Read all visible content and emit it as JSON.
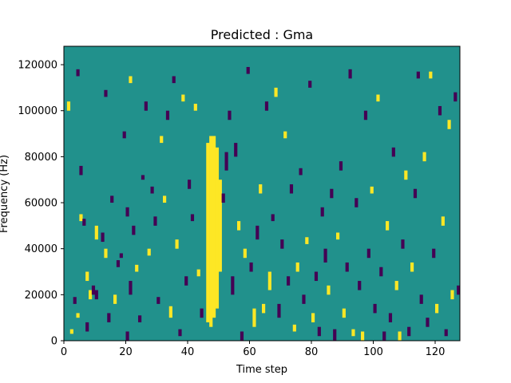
{
  "chart_data": {
    "type": "heatmap",
    "title": "Predicted : Gma",
    "xlabel": "Time step",
    "ylabel": "Frequency (Hz)",
    "xlim": [
      0,
      128
    ],
    "ylim": [
      0,
      128000
    ],
    "x_ticks": [
      0,
      20,
      40,
      60,
      80,
      100,
      120
    ],
    "y_ticks": [
      0,
      20000,
      40000,
      60000,
      80000,
      100000,
      120000
    ],
    "x_tick_labels": [
      "0",
      "20",
      "40",
      "60",
      "80",
      "100",
      "120"
    ],
    "y_tick_labels": [
      "0",
      "20000",
      "40000",
      "60000",
      "80000",
      "100000",
      "120000"
    ],
    "n_time_steps": 128,
    "n_frequency_bins": 128,
    "colormap": "viridis",
    "value_levels": [
      0,
      1,
      2
    ],
    "colors": {
      "low": "#440154",
      "mid": "#21918c",
      "high": "#fde725",
      "axes": "#000000",
      "background": "#ffffff"
    },
    "background_value": 1,
    "segments": [
      {
        "t": 1,
        "f0": 100,
        "f1": 104,
        "v": 2
      },
      {
        "t": 2,
        "f0": 3,
        "f1": 5,
        "v": 2
      },
      {
        "t": 3,
        "f0": 16,
        "f1": 19,
        "v": 0
      },
      {
        "t": 4,
        "f0": 10,
        "f1": 12,
        "v": 2
      },
      {
        "t": 4,
        "f0": 115,
        "f1": 118,
        "v": 0
      },
      {
        "t": 5,
        "f0": 52,
        "f1": 55,
        "v": 2
      },
      {
        "t": 5,
        "f0": 72,
        "f1": 76,
        "v": 0
      },
      {
        "t": 6,
        "f0": 50,
        "f1": 53,
        "v": 0
      },
      {
        "t": 7,
        "f0": 4,
        "f1": 8,
        "v": 0
      },
      {
        "t": 7,
        "f0": 26,
        "f1": 30,
        "v": 2
      },
      {
        "t": 8,
        "f0": 18,
        "f1": 22,
        "v": 2
      },
      {
        "t": 9,
        "f0": 20,
        "f1": 24,
        "v": 0
      },
      {
        "t": 10,
        "f0": 18,
        "f1": 22,
        "v": 0
      },
      {
        "t": 10,
        "f0": 44,
        "f1": 50,
        "v": 2
      },
      {
        "t": 12,
        "f0": 43,
        "f1": 47,
        "v": 0
      },
      {
        "t": 13,
        "f0": 36,
        "f1": 40,
        "v": 2
      },
      {
        "t": 13,
        "f0": 106,
        "f1": 109,
        "v": 0
      },
      {
        "t": 14,
        "f0": 8,
        "f1": 12,
        "v": 0
      },
      {
        "t": 15,
        "f0": 60,
        "f1": 63,
        "v": 0
      },
      {
        "t": 16,
        "f0": 16,
        "f1": 20,
        "v": 2
      },
      {
        "t": 17,
        "f0": 32,
        "f1": 35,
        "v": 0
      },
      {
        "t": 18,
        "f0": 36,
        "f1": 38,
        "v": 0
      },
      {
        "t": 19,
        "f0": 88,
        "f1": 91,
        "v": 0
      },
      {
        "t": 20,
        "f0": 0,
        "f1": 4,
        "v": 0
      },
      {
        "t": 20,
        "f0": 54,
        "f1": 58,
        "v": 0
      },
      {
        "t": 21,
        "f0": 20,
        "f1": 26,
        "v": 0
      },
      {
        "t": 21,
        "f0": 112,
        "f1": 115,
        "v": 2
      },
      {
        "t": 22,
        "f0": 46,
        "f1": 50,
        "v": 0
      },
      {
        "t": 23,
        "f0": 30,
        "f1": 33,
        "v": 2
      },
      {
        "t": 24,
        "f0": 8,
        "f1": 11,
        "v": 0
      },
      {
        "t": 25,
        "f0": 70,
        "f1": 72,
        "v": 0
      },
      {
        "t": 26,
        "f0": 100,
        "f1": 104,
        "v": 0
      },
      {
        "t": 27,
        "f0": 37,
        "f1": 40,
        "v": 2
      },
      {
        "t": 28,
        "f0": 64,
        "f1": 67,
        "v": 0
      },
      {
        "t": 29,
        "f0": 50,
        "f1": 54,
        "v": 0
      },
      {
        "t": 30,
        "f0": 16,
        "f1": 19,
        "v": 0
      },
      {
        "t": 31,
        "f0": 86,
        "f1": 89,
        "v": 2
      },
      {
        "t": 32,
        "f0": 60,
        "f1": 63,
        "v": 2
      },
      {
        "t": 33,
        "f0": 96,
        "f1": 100,
        "v": 0
      },
      {
        "t": 34,
        "f0": 10,
        "f1": 15,
        "v": 2
      },
      {
        "t": 35,
        "f0": 112,
        "f1": 115,
        "v": 0
      },
      {
        "t": 36,
        "f0": 40,
        "f1": 44,
        "v": 2
      },
      {
        "t": 37,
        "f0": 2,
        "f1": 5,
        "v": 0
      },
      {
        "t": 38,
        "f0": 104,
        "f1": 107,
        "v": 2
      },
      {
        "t": 39,
        "f0": 24,
        "f1": 28,
        "v": 0
      },
      {
        "t": 40,
        "f0": 66,
        "f1": 70,
        "v": 0
      },
      {
        "t": 41,
        "f0": 52,
        "f1": 55,
        "v": 0
      },
      {
        "t": 42,
        "f0": 100,
        "f1": 103,
        "v": 2
      },
      {
        "t": 43,
        "f0": 28,
        "f1": 31,
        "v": 2
      },
      {
        "t": 44,
        "f0": 10,
        "f1": 14,
        "v": 0
      },
      {
        "t": 46,
        "f0": 8,
        "f1": 86,
        "v": 2
      },
      {
        "t": 47,
        "f0": 6,
        "f1": 89,
        "v": 2
      },
      {
        "t": 48,
        "f0": 10,
        "f1": 89,
        "v": 2
      },
      {
        "t": 49,
        "f0": 14,
        "f1": 84,
        "v": 2
      },
      {
        "t": 50,
        "f0": 30,
        "f1": 70,
        "v": 2
      },
      {
        "t": 51,
        "f0": 60,
        "f1": 64,
        "v": 0
      },
      {
        "t": 52,
        "f0": 74,
        "f1": 82,
        "v": 0
      },
      {
        "t": 53,
        "f0": 96,
        "f1": 100,
        "v": 0
      },
      {
        "t": 54,
        "f0": 20,
        "f1": 28,
        "v": 0
      },
      {
        "t": 55,
        "f0": 80,
        "f1": 86,
        "v": 0
      },
      {
        "t": 56,
        "f0": 48,
        "f1": 52,
        "v": 2
      },
      {
        "t": 57,
        "f0": 0,
        "f1": 4,
        "v": 0
      },
      {
        "t": 58,
        "f0": 36,
        "f1": 40,
        "v": 2
      },
      {
        "t": 59,
        "f0": 116,
        "f1": 119,
        "v": 0
      },
      {
        "t": 60,
        "f0": 30,
        "f1": 34,
        "v": 0
      },
      {
        "t": 61,
        "f0": 6,
        "f1": 14,
        "v": 2
      },
      {
        "t": 62,
        "f0": 44,
        "f1": 50,
        "v": 0
      },
      {
        "t": 63,
        "f0": 64,
        "f1": 68,
        "v": 2
      },
      {
        "t": 64,
        "f0": 12,
        "f1": 16,
        "v": 2
      },
      {
        "t": 65,
        "f0": 100,
        "f1": 104,
        "v": 0
      },
      {
        "t": 66,
        "f0": 22,
        "f1": 30,
        "v": 2
      },
      {
        "t": 67,
        "f0": 52,
        "f1": 55,
        "v": 0
      },
      {
        "t": 68,
        "f0": 106,
        "f1": 110,
        "v": 2
      },
      {
        "t": 69,
        "f0": 10,
        "f1": 16,
        "v": 0
      },
      {
        "t": 70,
        "f0": 40,
        "f1": 44,
        "v": 0
      },
      {
        "t": 71,
        "f0": 88,
        "f1": 91,
        "v": 2
      },
      {
        "t": 72,
        "f0": 24,
        "f1": 28,
        "v": 0
      },
      {
        "t": 73,
        "f0": 64,
        "f1": 68,
        "v": 0
      },
      {
        "t": 74,
        "f0": 4,
        "f1": 7,
        "v": 2
      },
      {
        "t": 75,
        "f0": 30,
        "f1": 34,
        "v": 2
      },
      {
        "t": 76,
        "f0": 72,
        "f1": 75,
        "v": 0
      },
      {
        "t": 77,
        "f0": 16,
        "f1": 20,
        "v": 0
      },
      {
        "t": 78,
        "f0": 42,
        "f1": 45,
        "v": 2
      },
      {
        "t": 79,
        "f0": 110,
        "f1": 113,
        "v": 0
      },
      {
        "t": 80,
        "f0": 8,
        "f1": 12,
        "v": 2
      },
      {
        "t": 81,
        "f0": 26,
        "f1": 30,
        "v": 0
      },
      {
        "t": 82,
        "f0": 2,
        "f1": 6,
        "v": 0
      },
      {
        "t": 83,
        "f0": 54,
        "f1": 58,
        "v": 0
      },
      {
        "t": 84,
        "f0": 34,
        "f1": 40,
        "v": 0
      },
      {
        "t": 85,
        "f0": 20,
        "f1": 24,
        "v": 2
      },
      {
        "t": 86,
        "f0": 62,
        "f1": 66,
        "v": 0
      },
      {
        "t": 87,
        "f0": 0,
        "f1": 5,
        "v": 0
      },
      {
        "t": 88,
        "f0": 44,
        "f1": 47,
        "v": 2
      },
      {
        "t": 89,
        "f0": 74,
        "f1": 78,
        "v": 0
      },
      {
        "t": 90,
        "f0": 10,
        "f1": 14,
        "v": 2
      },
      {
        "t": 91,
        "f0": 30,
        "f1": 34,
        "v": 0
      },
      {
        "t": 92,
        "f0": 114,
        "f1": 118,
        "v": 0
      },
      {
        "t": 93,
        "f0": 2,
        "f1": 5,
        "v": 2
      },
      {
        "t": 94,
        "f0": 58,
        "f1": 62,
        "v": 0
      },
      {
        "t": 95,
        "f0": 22,
        "f1": 26,
        "v": 0
      },
      {
        "t": 96,
        "f0": 0,
        "f1": 4,
        "v": 2
      },
      {
        "t": 97,
        "f0": 96,
        "f1": 100,
        "v": 0
      },
      {
        "t": 98,
        "f0": 36,
        "f1": 40,
        "v": 0
      },
      {
        "t": 99,
        "f0": 64,
        "f1": 67,
        "v": 2
      },
      {
        "t": 100,
        "f0": 12,
        "f1": 16,
        "v": 0
      },
      {
        "t": 101,
        "f0": 104,
        "f1": 107,
        "v": 2
      },
      {
        "t": 102,
        "f0": 28,
        "f1": 32,
        "v": 0
      },
      {
        "t": 103,
        "f0": 0,
        "f1": 4,
        "v": 0
      },
      {
        "t": 104,
        "f0": 48,
        "f1": 52,
        "v": 2
      },
      {
        "t": 105,
        "f0": 8,
        "f1": 12,
        "v": 0
      },
      {
        "t": 106,
        "f0": 80,
        "f1": 84,
        "v": 0
      },
      {
        "t": 107,
        "f0": 22,
        "f1": 26,
        "v": 2
      },
      {
        "t": 108,
        "f0": 0,
        "f1": 4,
        "v": 2
      },
      {
        "t": 109,
        "f0": 40,
        "f1": 44,
        "v": 0
      },
      {
        "t": 110,
        "f0": 70,
        "f1": 74,
        "v": 2
      },
      {
        "t": 111,
        "f0": 2,
        "f1": 6,
        "v": 0
      },
      {
        "t": 112,
        "f0": 30,
        "f1": 34,
        "v": 2
      },
      {
        "t": 113,
        "f0": 62,
        "f1": 66,
        "v": 0
      },
      {
        "t": 114,
        "f0": 114,
        "f1": 117,
        "v": 0
      },
      {
        "t": 115,
        "f0": 16,
        "f1": 20,
        "v": 0
      },
      {
        "t": 116,
        "f0": 78,
        "f1": 82,
        "v": 2
      },
      {
        "t": 117,
        "f0": 6,
        "f1": 10,
        "v": 0
      },
      {
        "t": 118,
        "f0": 114,
        "f1": 117,
        "v": 2
      },
      {
        "t": 119,
        "f0": 36,
        "f1": 40,
        "v": 0
      },
      {
        "t": 120,
        "f0": 12,
        "f1": 16,
        "v": 2
      },
      {
        "t": 121,
        "f0": 98,
        "f1": 102,
        "v": 0
      },
      {
        "t": 122,
        "f0": 50,
        "f1": 54,
        "v": 2
      },
      {
        "t": 123,
        "f0": 2,
        "f1": 5,
        "v": 0
      },
      {
        "t": 124,
        "f0": 92,
        "f1": 96,
        "v": 2
      },
      {
        "t": 125,
        "f0": 18,
        "f1": 22,
        "v": 2
      },
      {
        "t": 126,
        "f0": 104,
        "f1": 108,
        "v": 0
      },
      {
        "t": 127,
        "f0": 20,
        "f1": 24,
        "v": 0
      }
    ]
  }
}
